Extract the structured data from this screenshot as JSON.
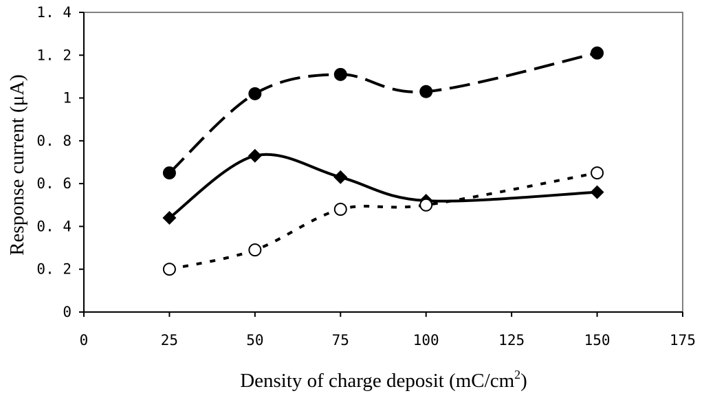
{
  "chart_data": {
    "type": "line",
    "title": "",
    "xlabel": "Density of charge deposit (mC/cm",
    "xlabel_superscript": "2",
    "xlabel_suffix": ")",
    "ylabel": "Response current (μA)",
    "xlim": [
      0,
      175
    ],
    "ylim": [
      0,
      1.4
    ],
    "xticks": [
      "0",
      "25",
      "50",
      "75",
      "100",
      "125",
      "150",
      "175"
    ],
    "yticks": [
      "0",
      "0. 2",
      "0. 4",
      "0. 6",
      "0. 8",
      "1",
      "1. 2",
      "1. 4"
    ],
    "grid": false,
    "legend": "none",
    "series": [
      {
        "marker": "filled-circle",
        "line_style": "long-dash",
        "x": [
          25,
          50,
          75,
          100,
          150
        ],
        "y": [
          0.65,
          1.02,
          1.11,
          1.03,
          1.21
        ]
      },
      {
        "marker": "filled-diamond",
        "line_style": "solid",
        "x": [
          25,
          50,
          75,
          100,
          150
        ],
        "y": [
          0.44,
          0.73,
          0.63,
          0.52,
          0.56
        ]
      },
      {
        "marker": "open-circle",
        "line_style": "dotted",
        "x": [
          25,
          50,
          75,
          100,
          150
        ],
        "y": [
          0.2,
          0.29,
          0.48,
          0.5,
          0.65
        ]
      }
    ],
    "colors": {
      "line": "#000000",
      "background": "#ffffff"
    }
  }
}
